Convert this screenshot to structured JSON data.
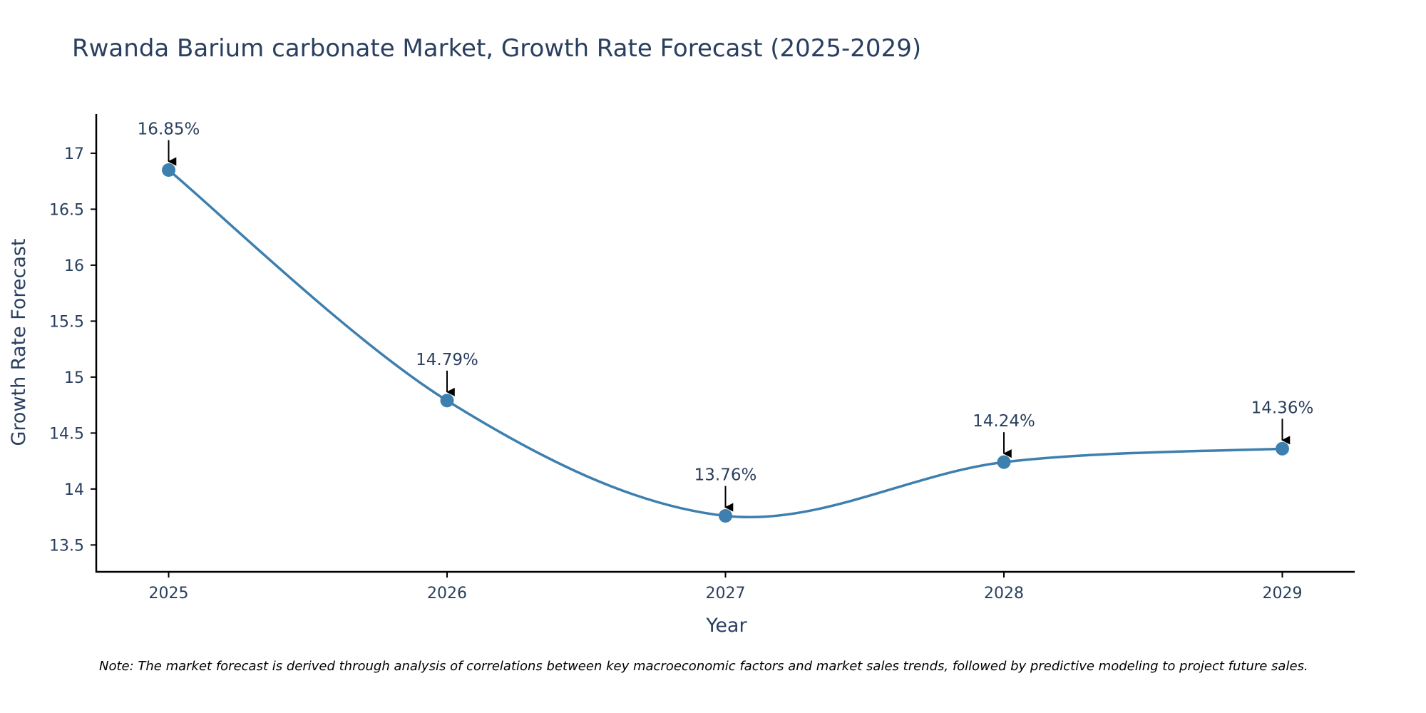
{
  "chart_data": {
    "type": "line",
    "title": "Rwanda Barium carbonate Market, Growth Rate Forecast (2025-2029)",
    "xlabel": "Year",
    "ylabel": "Growth Rate Forecast",
    "categories": [
      "2025",
      "2026",
      "2027",
      "2028",
      "2029"
    ],
    "values": [
      16.85,
      14.79,
      13.76,
      14.24,
      14.36
    ],
    "annotations": [
      "16.85%",
      "14.79%",
      "13.76%",
      "14.24%",
      "14.36%"
    ],
    "y_ticks": [
      13.5,
      14,
      14.5,
      15,
      15.5,
      16,
      16.5,
      17
    ],
    "y_tick_labels": [
      "13.5",
      "14",
      "14.5",
      "15",
      "15.5",
      "16",
      "16.5",
      "17"
    ],
    "ylim": [
      13.26,
      17.35
    ],
    "x_range": [
      -0.26,
      4.26
    ],
    "line_shape": "spline",
    "grid": false,
    "note": "Note: The market forecast is derived through analysis of correlations between key macroeconomic factors and market sales trends, followed by predictive modeling to project future sales.",
    "colors": {
      "line": "#3d7fae",
      "marker": "#3d7fae",
      "axis": "#000000",
      "text": "#2a3f5f"
    }
  }
}
